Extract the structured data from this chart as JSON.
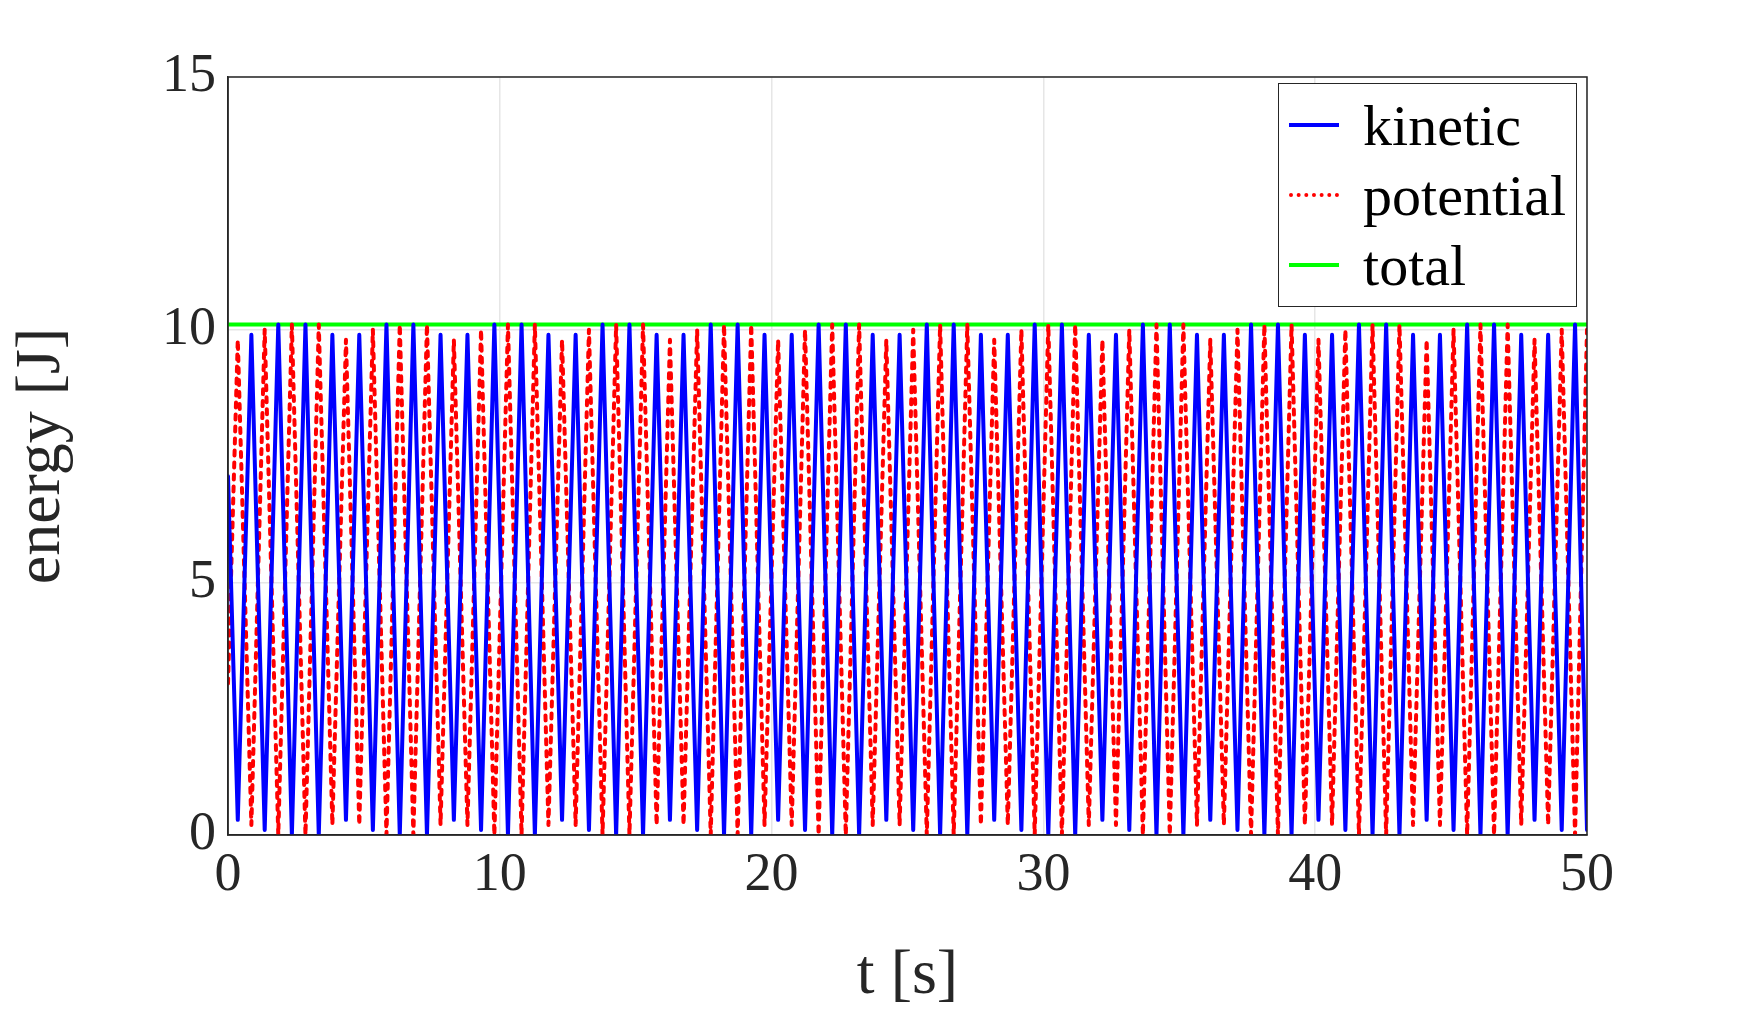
{
  "chart_data": {
    "type": "line",
    "xlabel": "t [s]",
    "ylabel": "energy [J]",
    "x": [
      0,
      0.36,
      0.86,
      1.35,
      1.85,
      2.35,
      2.85,
      3.34,
      3.84,
      4.34,
      4.83,
      5.33,
      5.83,
      6.32,
      6.82,
      7.32,
      7.82,
      8.31,
      8.81,
      9.31,
      9.8,
      10.3,
      10.8,
      11.29,
      11.79,
      12.29,
      12.79,
      13.28,
      13.78,
      14.28,
      14.77,
      15.27,
      15.77,
      16.26,
      16.76,
      17.26,
      17.76,
      18.25,
      18.75,
      19.25,
      19.74,
      20.24,
      20.74,
      21.23,
      21.73,
      22.23,
      22.73,
      23.22,
      23.72,
      24.22,
      24.71,
      25.21,
      25.71,
      26.2,
      26.7,
      27.2,
      27.7,
      28.19,
      28.69,
      29.19,
      29.68,
      30.18,
      30.68,
      31.17,
      31.67,
      32.17,
      32.67,
      33.16,
      33.66,
      34.16,
      34.65,
      35.15,
      35.65,
      36.14,
      36.64,
      37.14,
      37.64,
      38.13,
      38.63,
      39.13,
      39.62,
      40.12,
      40.62,
      41.11,
      41.61,
      42.11,
      42.61,
      43.1,
      43.6,
      44.1,
      44.59,
      45.09,
      45.59,
      46.08,
      46.58,
      47.08,
      47.58,
      48.07,
      48.57,
      49.07,
      49.56,
      50
    ],
    "series": [
      {
        "name": "kinetic",
        "color": "#0000ff",
        "line_style": "solid",
        "values": [
          7.1,
          0.3,
          9.9,
          0.1,
          10.1,
          0,
          10.1,
          0,
          9.9,
          0.3,
          9.9,
          0.1,
          10.1,
          0,
          10.1,
          0,
          9.9,
          0.3,
          9.9,
          0.1,
          10.1,
          0,
          10.1,
          0,
          9.9,
          0.3,
          9.9,
          0.1,
          10.1,
          0,
          10.1,
          0,
          9.9,
          0.3,
          9.9,
          0.1,
          10.1,
          0,
          10.1,
          0,
          9.9,
          0.3,
          9.9,
          0.1,
          10.1,
          0,
          10.1,
          0,
          9.9,
          0.3,
          9.9,
          0.1,
          10.1,
          0,
          10.1,
          0,
          9.9,
          0.3,
          9.9,
          0.1,
          10.1,
          0,
          10.1,
          0,
          9.9,
          0.3,
          9.9,
          0.1,
          10.1,
          0,
          10.1,
          0,
          9.9,
          0.3,
          9.9,
          0.1,
          10.1,
          0,
          10.1,
          0,
          9.9,
          0.3,
          9.9,
          0.1,
          10.1,
          0,
          10.1,
          0,
          9.9,
          0.3,
          9.9,
          0.1,
          10.1,
          0,
          10.1,
          0,
          9.9,
          0.3,
          9.9,
          0.1,
          10.1,
          0.1
        ]
      },
      {
        "name": "potential",
        "color": "#ff0000",
        "line_style": "dotted",
        "values": [
          3.0,
          9.8,
          0.2,
          10,
          0,
          10.1,
          0,
          10.1,
          0.2,
          9.8,
          0.2,
          10,
          0,
          10.1,
          0,
          10.1,
          0.2,
          9.8,
          0.2,
          10,
          0,
          10.1,
          0,
          10.1,
          0.2,
          9.8,
          0.2,
          10,
          0,
          10.1,
          0,
          10.1,
          0.2,
          9.8,
          0.2,
          10,
          0,
          10.1,
          0,
          10.1,
          0.2,
          9.8,
          0.2,
          10,
          0,
          10.1,
          0,
          10.1,
          0.2,
          9.8,
          0.2,
          10,
          0,
          10.1,
          0,
          10.1,
          0.2,
          9.8,
          0.2,
          10,
          0,
          10.1,
          0,
          10.1,
          0.2,
          9.8,
          0.2,
          10,
          0,
          10.1,
          0,
          10.1,
          0.2,
          9.8,
          0.2,
          10,
          0,
          10.1,
          0,
          10.1,
          0.2,
          9.8,
          0.2,
          10,
          0,
          10.1,
          0,
          10.1,
          0.2,
          9.8,
          0.2,
          10,
          0,
          10.1,
          0,
          10.1,
          0.2,
          9.8,
          0.2,
          10,
          0,
          10.0
        ]
      },
      {
        "name": "total",
        "color": "#00ff00",
        "line_style": "solid",
        "x": [
          0,
          50
        ],
        "values": [
          10.1,
          10.1
        ]
      }
    ],
    "xlim": [
      0,
      50
    ],
    "xticks": [
      0,
      10,
      20,
      30,
      40,
      50
    ],
    "ylim": [
      0,
      15
    ],
    "yticks": [
      0,
      5,
      10,
      15
    ],
    "grid": true,
    "legend": "top right",
    "marker": "none"
  }
}
